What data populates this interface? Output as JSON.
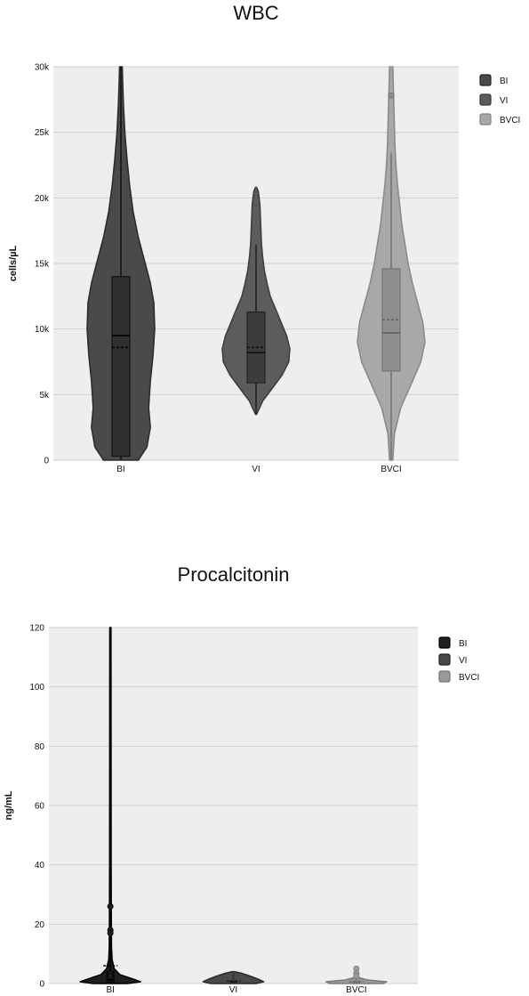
{
  "chart_data": [
    {
      "type": "violin",
      "title": "WBC",
      "ylabel": "cells/µL",
      "xlabel": "",
      "ylim": [
        0,
        30000
      ],
      "yticks": [
        0,
        5000,
        10000,
        15000,
        20000,
        25000,
        30000
      ],
      "ytick_labels": [
        "0",
        "5k",
        "10k",
        "15k",
        "20k",
        "25k",
        "30k"
      ],
      "categories": [
        "BI",
        "VI",
        "BVCI"
      ],
      "grid": true,
      "legend_position": "top-right",
      "series": [
        {
          "name": "BI",
          "color": "#4a4a4a",
          "box_color": "#2f2f2f",
          "whisker_low": 0,
          "q1": 300,
          "median": 9500,
          "mean": 8600,
          "q3": 14000,
          "whisker_high": 30000,
          "outliers": [],
          "density": [
            [
              0,
              2.0
            ],
            [
              1000,
              3.0
            ],
            [
              2500,
              3.4
            ],
            [
              4000,
              3.2
            ],
            [
              6000,
              3.4
            ],
            [
              8000,
              3.7
            ],
            [
              10000,
              3.9
            ],
            [
              12000,
              3.8
            ],
            [
              13500,
              3.4
            ],
            [
              15000,
              2.8
            ],
            [
              17000,
              2.0
            ],
            [
              19000,
              1.4
            ],
            [
              21000,
              1.0
            ],
            [
              23000,
              0.7
            ],
            [
              25000,
              0.45
            ],
            [
              27000,
              0.3
            ],
            [
              29000,
              0.2
            ],
            [
              30000,
              0.15
            ]
          ]
        },
        {
          "name": "VI",
          "color": "#5c5c5c",
          "box_color": "#3c3c3c",
          "whisker_low": 3500,
          "q1": 5900,
          "median": 8200,
          "mean": 8600,
          "q3": 11300,
          "whisker_high": 16400,
          "outliers": [],
          "density": [
            [
              3500,
              0.05
            ],
            [
              4500,
              0.6
            ],
            [
              5500,
              1.5
            ],
            [
              6500,
              2.4
            ],
            [
              7500,
              3.0
            ],
            [
              8500,
              3.1
            ],
            [
              9500,
              2.8
            ],
            [
              10500,
              2.3
            ],
            [
              11500,
              1.8
            ],
            [
              12500,
              1.3
            ],
            [
              13500,
              1.0
            ],
            [
              14500,
              0.75
            ],
            [
              15500,
              0.6
            ],
            [
              16500,
              0.5
            ],
            [
              17500,
              0.45
            ],
            [
              18500,
              0.4
            ],
            [
              19500,
              0.35
            ],
            [
              20500,
              0.2
            ],
            [
              20800,
              0.05
            ]
          ]
        },
        {
          "name": "BVCI",
          "color": "#a8a8a8",
          "box_color": "#8e8e8e",
          "whisker_low": 0,
          "q1": 6800,
          "median": 9700,
          "mean": 10700,
          "q3": 14600,
          "whisker_high": 23400,
          "outliers": [
            27800
          ],
          "density": [
            [
              0,
              0.15
            ],
            [
              2000,
              0.3
            ],
            [
              4000,
              0.9
            ],
            [
              6000,
              2.0
            ],
            [
              7500,
              2.8
            ],
            [
              9000,
              3.2
            ],
            [
              10500,
              3.0
            ],
            [
              12000,
              2.5
            ],
            [
              13500,
              2.0
            ],
            [
              15000,
              1.6
            ],
            [
              16500,
              1.3
            ],
            [
              18000,
              1.0
            ],
            [
              19500,
              0.8
            ],
            [
              21000,
              0.6
            ],
            [
              22500,
              0.45
            ],
            [
              24000,
              0.35
            ],
            [
              25500,
              0.3
            ],
            [
              27000,
              0.25
            ],
            [
              28500,
              0.2
            ],
            [
              30000,
              0.15
            ]
          ]
        }
      ]
    },
    {
      "type": "violin",
      "title": "Procalcitonin",
      "ylabel": "ng/mL",
      "xlabel": "",
      "ylim": [
        0,
        120
      ],
      "yticks": [
        0,
        20,
        40,
        60,
        80,
        100,
        120
      ],
      "ytick_labels": [
        "0",
        "20",
        "40",
        "60",
        "80",
        "100",
        "120"
      ],
      "categories": [
        "BI",
        "VI",
        "BVCI"
      ],
      "grid": true,
      "legend_position": "top-right",
      "series": [
        {
          "name": "BI",
          "color": "#1f1f1f",
          "box_color": "#1f1f1f",
          "whisker_low": 0,
          "q1": 0.5,
          "median": 1.2,
          "mean": 6.0,
          "q3": 4.0,
          "whisker_high": 120,
          "outliers": [
            26,
            18,
            17,
            3.5,
            2.5
          ],
          "density": [
            [
              0,
              9.0
            ],
            [
              0.6,
              16.0
            ],
            [
              1.5,
              12.0
            ],
            [
              3,
              5.0
            ],
            [
              5,
              2.0
            ],
            [
              8,
              0.9
            ],
            [
              12,
              0.6
            ],
            [
              20,
              0.5
            ],
            [
              40,
              0.4
            ],
            [
              80,
              0.35
            ],
            [
              120,
              0.3
            ]
          ]
        },
        {
          "name": "VI",
          "color": "#4a4a4a",
          "box_color": "#4a4a4a",
          "whisker_low": 0,
          "q1": 0.2,
          "median": 0.5,
          "mean": 0.8,
          "q3": 1.0,
          "whisker_high": 3.5,
          "outliers": [],
          "density": [
            [
              0,
              12.0
            ],
            [
              0.6,
              16.0
            ],
            [
              1.5,
              13.0
            ],
            [
              2.5,
              9.0
            ],
            [
              3.5,
              4.0
            ],
            [
              4.0,
              0.5
            ]
          ]
        },
        {
          "name": "BVCI",
          "color": "#9a9a9a",
          "box_color": "#9a9a9a",
          "whisker_low": 0,
          "q1": 0.1,
          "median": 0.3,
          "mean": 0.6,
          "q3": 0.8,
          "whisker_high": 2.0,
          "outliers": [
            5.0,
            3.5,
            2.5
          ],
          "density": [
            [
              0,
              14.0
            ],
            [
              0.6,
              16.0
            ],
            [
              1.2,
              6.0
            ],
            [
              2.0,
              1.0
            ],
            [
              3.0,
              0.6
            ],
            [
              5.0,
              0.4
            ]
          ]
        }
      ]
    }
  ]
}
